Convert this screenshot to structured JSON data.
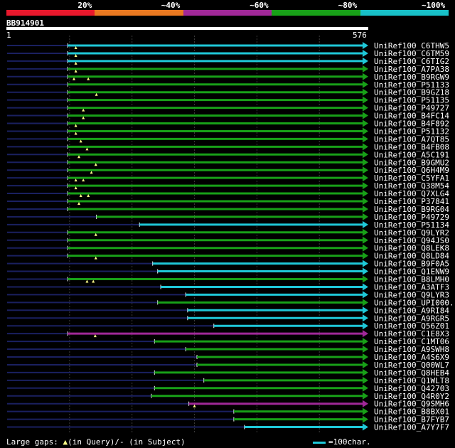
{
  "legend": {
    "segments": [
      {
        "label": "20%",
        "color": "#e8182c"
      },
      {
        "label": "~40%",
        "color": "#e87820"
      },
      {
        "label": "~60%",
        "color": "#a02898"
      },
      {
        "label": "~80%",
        "color": "#18a018"
      },
      {
        "label": "~100%",
        "color": "#18c0c8"
      }
    ]
  },
  "query": {
    "id": "BB914901",
    "start_label": "1",
    "end_label": "576",
    "length": 576
  },
  "footer": {
    "gaps_prefix": "Large gaps: ",
    "gaps_query": "(in Query)/",
    "gaps_subject": "- (in Subject)",
    "scale_label": "=100char."
  },
  "colors": {
    "cyan": "#1fc8d8",
    "green": "#18a018",
    "purple": "#a02898",
    "dim": "#1a2060",
    "grid": "#3a3a3a"
  },
  "chart_data": {
    "type": "alignment",
    "query_length": 576,
    "hits": [
      {
        "name": "UniRef100_C6THW5",
        "start": 97,
        "color": "cyan",
        "gaps": [
          110
        ]
      },
      {
        "name": "UniRef100_C6TM59",
        "start": 97,
        "color": "cyan",
        "gaps": [
          110
        ]
      },
      {
        "name": "UniRef100_C6TIG2",
        "start": 97,
        "color": "cyan",
        "gaps": [
          110
        ]
      },
      {
        "name": "UniRef100_A7PA38",
        "start": 97,
        "color": "green",
        "gaps": [
          110
        ]
      },
      {
        "name": "UniRef100_B9RGW9",
        "start": 97,
        "color": "green",
        "gaps": [
          107,
          130
        ]
      },
      {
        "name": "UniRef100_P51133",
        "start": 97,
        "color": "green",
        "gaps": []
      },
      {
        "name": "UniRef100_B9GZ18",
        "start": 97,
        "color": "green",
        "gaps": [
          143
        ]
      },
      {
        "name": "UniRef100_P51135",
        "start": 97,
        "color": "green",
        "gaps": []
      },
      {
        "name": "UniRef100_P49727",
        "start": 97,
        "color": "green",
        "gaps": [
          122
        ]
      },
      {
        "name": "UniRef100_B4FC14",
        "start": 97,
        "color": "green",
        "gaps": [
          122
        ]
      },
      {
        "name": "UniRef100_B4F892",
        "start": 97,
        "color": "green",
        "gaps": [
          110
        ]
      },
      {
        "name": "UniRef100_P51132",
        "start": 97,
        "color": "green",
        "gaps": [
          110
        ]
      },
      {
        "name": "UniRef100_A7QT85",
        "start": 97,
        "color": "green",
        "gaps": [
          118
        ]
      },
      {
        "name": "UniRef100_B4FB08",
        "start": 97,
        "color": "green",
        "gaps": [
          128
        ]
      },
      {
        "name": "UniRef100_A5C191",
        "start": 97,
        "color": "green",
        "gaps": [
          115
        ]
      },
      {
        "name": "UniRef100_B9GMU2",
        "start": 97,
        "color": "green",
        "gaps": [
          142
        ]
      },
      {
        "name": "UniRef100_Q6H4M9",
        "start": 97,
        "color": "green",
        "gaps": [
          135
        ]
      },
      {
        "name": "UniRef100_C5YFA1",
        "start": 97,
        "color": "green",
        "gaps": [
          110,
          122
        ]
      },
      {
        "name": "UniRef100_Q38M54",
        "start": 97,
        "color": "green",
        "gaps": [
          110
        ]
      },
      {
        "name": "UniRef100_Q7XLG4",
        "start": 97,
        "color": "green",
        "gaps": [
          118,
          130
        ]
      },
      {
        "name": "UniRef100_P37841",
        "start": 97,
        "color": "green",
        "gaps": [
          115
        ]
      },
      {
        "name": "UniRef100_B9RG04",
        "start": 97,
        "color": "green",
        "gaps": []
      },
      {
        "name": "UniRef100_P49729",
        "start": 143,
        "color": "green",
        "gaps": []
      },
      {
        "name": "UniRef100_P51134",
        "start": 212,
        "color": "cyan",
        "gaps": []
      },
      {
        "name": "UniRef100_Q9LYR2",
        "start": 97,
        "color": "green",
        "gaps": [
          142
        ]
      },
      {
        "name": "UniRef100_Q94JS0",
        "start": 97,
        "color": "green",
        "gaps": []
      },
      {
        "name": "UniRef100_Q8LEK8",
        "start": 97,
        "color": "green",
        "gaps": []
      },
      {
        "name": "UniRef100_Q8LD84",
        "start": 97,
        "color": "green",
        "gaps": [
          142
        ]
      },
      {
        "name": "UniRef100_B9F0A5",
        "start": 233,
        "color": "cyan",
        "gaps": []
      },
      {
        "name": "UniRef100_Q1ENW9",
        "start": 241,
        "color": "cyan",
        "gaps": []
      },
      {
        "name": "UniRef100_B8LMH0",
        "start": 97,
        "color": "green",
        "gaps": [
          128,
          138
        ]
      },
      {
        "name": "UniRef100_A3ATF3",
        "start": 246,
        "color": "cyan",
        "gaps": []
      },
      {
        "name": "UniRef100_Q9LYR3",
        "start": 286,
        "color": "cyan",
        "gaps": []
      },
      {
        "name": "UniRef100_UPI000..",
        "start": 241,
        "color": "green",
        "gaps": []
      },
      {
        "name": "UniRef100_A9RI84",
        "start": 289,
        "color": "cyan",
        "gaps": []
      },
      {
        "name": "UniRef100_A9RGR5",
        "start": 289,
        "color": "cyan",
        "gaps": []
      },
      {
        "name": "UniRef100_Q56Z01",
        "start": 331,
        "color": "cyan",
        "gaps": []
      },
      {
        "name": "UniRef100_C1E8X3",
        "start": 97,
        "color": "purple",
        "gaps": [
          141
        ]
      },
      {
        "name": "UniRef100_C1MT06",
        "start": 236,
        "color": "green",
        "gaps": []
      },
      {
        "name": "UniRef100_A9SWH8",
        "start": 286,
        "color": "green",
        "gaps": []
      },
      {
        "name": "UniRef100_A4S6X9",
        "start": 304,
        "color": "green",
        "gaps": []
      },
      {
        "name": "UniRef100_Q00WL7",
        "start": 304,
        "color": "green",
        "gaps": []
      },
      {
        "name": "UniRef100_Q8HEB4",
        "start": 236,
        "color": "green",
        "gaps": []
      },
      {
        "name": "UniRef100_Q1WLT8",
        "start": 315,
        "color": "green",
        "gaps": []
      },
      {
        "name": "UniRef100_Q42703",
        "start": 236,
        "color": "green",
        "gaps": []
      },
      {
        "name": "UniRef100_Q4R0Y2",
        "start": 231,
        "color": "green",
        "gaps": []
      },
      {
        "name": "UniRef100_Q9SMH6",
        "start": 291,
        "color": "purple",
        "gaps": [
          300
        ]
      },
      {
        "name": "UniRef100_B8BX01",
        "start": 363,
        "color": "green",
        "gaps": []
      },
      {
        "name": "UniRef100_B7FYB7",
        "start": 363,
        "color": "green",
        "gaps": []
      },
      {
        "name": "UniRef100_A7Y7F7",
        "start": 380,
        "color": "cyan",
        "gaps": []
      }
    ]
  }
}
